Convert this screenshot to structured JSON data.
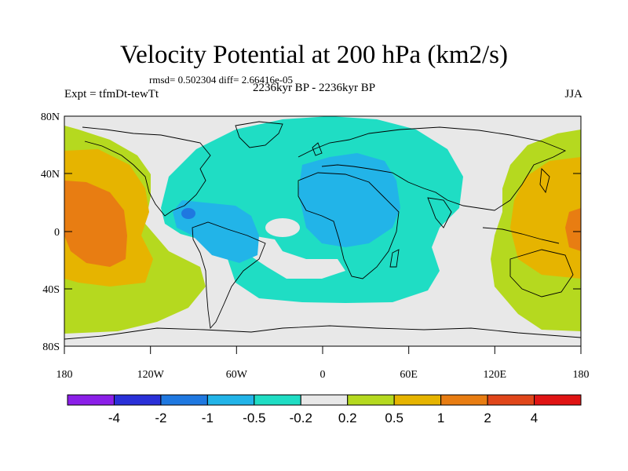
{
  "title": "Velocity Potential at 200 hPa (km2/s)",
  "stats": "rmsd= 0.502304 diff= 2.66416e-05",
  "experiment": "Expt = tfmDt-tewTt",
  "period": "2236kyr BP - 2236kyr BP",
  "season": "JJA",
  "map": {
    "lat_ticks": [
      "80N",
      "40N",
      "0",
      "40S",
      "80S"
    ],
    "lon_ticks": [
      "180",
      "120W",
      "60W",
      "0",
      "60E",
      "120E",
      "180"
    ],
    "background_color": "#e8e8e8"
  },
  "colorbar": {
    "colors": [
      "#8b1fe8",
      "#2a30d8",
      "#1f78e0",
      "#22b4e8",
      "#1fddc4",
      "#e8e8e8",
      "#b5d91f",
      "#e6b400",
      "#e87d12",
      "#e0461a",
      "#e01414"
    ],
    "labels": [
      "-4",
      "-2",
      "-1",
      "-0.5",
      "-0.2",
      "0.2",
      "0.5",
      "1",
      "2",
      "4"
    ]
  }
}
